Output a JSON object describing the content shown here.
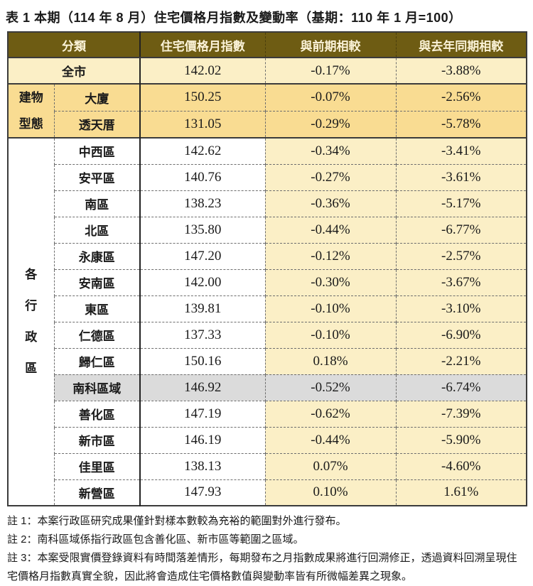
{
  "title": "表 1 本期（114 年 8 月）住宅價格月指數及變動率（基期：110 年 1 月=100）",
  "columns": {
    "category": "分類",
    "index": "住宅價格月指數",
    "mom": "與前期相較",
    "yoy": "與去年同期相較"
  },
  "city": {
    "name": "全市",
    "index": "142.02",
    "mom": "-0.17%",
    "yoy": "-3.88%"
  },
  "building_type": {
    "label": "建物型態",
    "rows": [
      {
        "name": "大廈",
        "index": "150.25",
        "mom": "-0.07%",
        "yoy": "-2.56%"
      },
      {
        "name": "透天厝",
        "index": "131.05",
        "mom": "-0.29%",
        "yoy": "-5.78%"
      }
    ]
  },
  "districts": {
    "label": "各行政區",
    "rows": [
      {
        "name": "中西區",
        "index": "142.62",
        "mom": "-0.34%",
        "yoy": "-3.41%",
        "highlight": false
      },
      {
        "name": "安平區",
        "index": "140.76",
        "mom": "-0.27%",
        "yoy": "-3.61%",
        "highlight": false
      },
      {
        "name": "南區",
        "index": "138.23",
        "mom": "-0.36%",
        "yoy": "-5.17%",
        "highlight": false
      },
      {
        "name": "北區",
        "index": "135.80",
        "mom": "-0.44%",
        "yoy": "-6.77%",
        "highlight": false
      },
      {
        "name": "永康區",
        "index": "147.20",
        "mom": "-0.12%",
        "yoy": "-2.57%",
        "highlight": false
      },
      {
        "name": "安南區",
        "index": "142.00",
        "mom": "-0.30%",
        "yoy": "-3.67%",
        "highlight": false
      },
      {
        "name": "東區",
        "index": "139.81",
        "mom": "-0.10%",
        "yoy": "-3.10%",
        "highlight": false
      },
      {
        "name": "仁德區",
        "index": "137.33",
        "mom": "-0.10%",
        "yoy": "-6.90%",
        "highlight": false
      },
      {
        "name": "歸仁區",
        "index": "150.16",
        "mom": "0.18%",
        "yoy": "-2.21%",
        "highlight": false
      },
      {
        "name": "南科區域",
        "index": "146.92",
        "mom": "-0.52%",
        "yoy": "-6.74%",
        "highlight": true
      },
      {
        "name": "善化區",
        "index": "147.19",
        "mom": "-0.62%",
        "yoy": "-7.39%",
        "highlight": false
      },
      {
        "name": "新市區",
        "index": "146.19",
        "mom": "-0.44%",
        "yoy": "-5.90%",
        "highlight": false
      },
      {
        "name": "佳里區",
        "index": "138.13",
        "mom": "0.07%",
        "yoy": "-4.60%",
        "highlight": false
      },
      {
        "name": "新營區",
        "index": "147.93",
        "mom": "0.10%",
        "yoy": "1.61%",
        "highlight": false
      }
    ]
  },
  "notes": [
    "註 1：本案行政區研究成果僅針對樣本數較為充裕的範圍對外進行發布。",
    "註 2：南科區域係指行政區包含善化區、新市區等範圍之區域。",
    "註 3：本案受限實價登錄資料有時間落差情形，每期發布之月指數成果將進行回溯修正，透過資料回溯呈現住宅價格月指數真實全貌，因此將會造成住宅價格數值與變動率皆有所微幅差異之現象。"
  ],
  "colors": {
    "header_bg": "#6E5C13",
    "header_text": "#FBF3D8",
    "gold_row": "#F9DC92",
    "cream": "#FBEFC6",
    "gray_row": "#DBDBDB",
    "border_dark": "#3B3B3B",
    "dash_color": "#6E6E6E",
    "text_color": "#1A1A1A"
  }
}
